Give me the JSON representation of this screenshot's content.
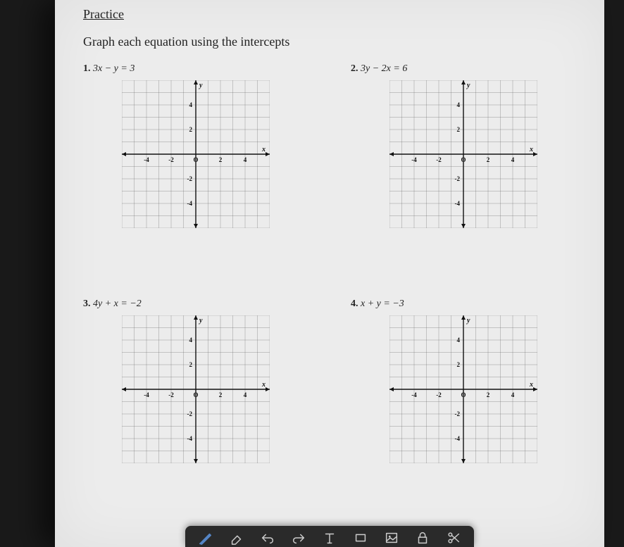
{
  "title": "Practice",
  "subtitle": "Graph each equation using the intercepts",
  "problems": [
    {
      "num": "1.",
      "equation": "3x − y = 3"
    },
    {
      "num": "2.",
      "equation": "3y − 2x = 6"
    },
    {
      "num": "3.",
      "equation": "4y + x = −2"
    },
    {
      "num": "4.",
      "equation": "x + y = −3"
    }
  ],
  "graph": {
    "size": 210,
    "cells": 12,
    "x_ticks": [
      {
        "v": -4,
        "label": "-4"
      },
      {
        "v": -2,
        "label": "-2"
      },
      {
        "v": 0,
        "label": "O"
      },
      {
        "v": 2,
        "label": "2"
      },
      {
        "v": 4,
        "label": "4"
      }
    ],
    "y_ticks": [
      {
        "v": 4,
        "label": "4"
      },
      {
        "v": 2,
        "label": "2"
      },
      {
        "v": -2,
        "label": "-2"
      },
      {
        "v": -4,
        "label": "-4"
      }
    ],
    "x_axis_label": "x",
    "y_axis_label": "y"
  },
  "colors": {
    "page_bg": "#ececec",
    "outer_bg": "#1a1a1a",
    "toolbar_bg": "#2a2a2a",
    "grid": "#555555",
    "axis": "#111111",
    "text": "#222222"
  }
}
